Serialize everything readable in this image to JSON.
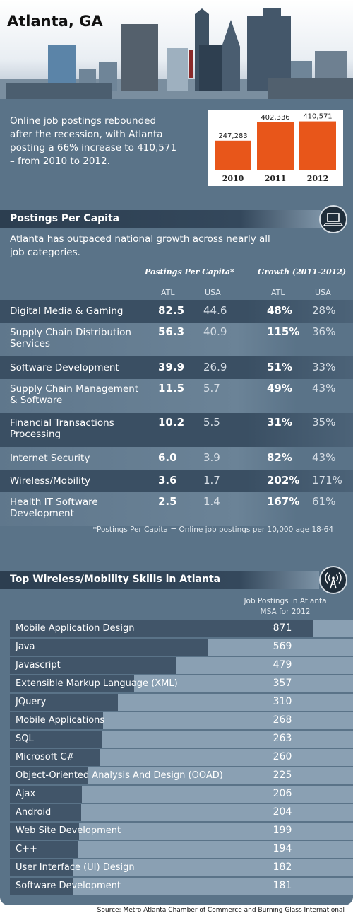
{
  "header": {
    "city_title": "Atlanta, GA",
    "intro_text": "Online job postings rebounded after the recession, with Atlanta posting a 66% increase to 410,571 – from 2010 to 2012."
  },
  "chart_data": {
    "type": "bar",
    "categories": [
      "2010",
      "2011",
      "2012"
    ],
    "values": [
      247283,
      402336,
      410571
    ],
    "value_labels": [
      "247,283",
      "402,336",
      "410,571"
    ],
    "bar_color": "#e8561a"
  },
  "per_capita": {
    "title": "Postings Per Capita",
    "icon": "laptop-icon",
    "intro": "Atlanta has outpaced national growth across nearly all job categories.",
    "group_headers": [
      "Postings Per Capita*",
      "Growth (2011-2012)"
    ],
    "col_headers": [
      "ATL",
      "USA",
      "ATL",
      "USA"
    ],
    "rows": [
      {
        "category": "Digital Media & Gaming",
        "ppc_atl": "82.5",
        "ppc_usa": "44.6",
        "growth_atl": "48%",
        "growth_usa": "28%"
      },
      {
        "category": "Supply Chain Distribution Services",
        "ppc_atl": "56.3",
        "ppc_usa": "40.9",
        "growth_atl": "115%",
        "growth_usa": "36%"
      },
      {
        "category": "Software Development",
        "ppc_atl": "39.9",
        "ppc_usa": "26.9",
        "growth_atl": "51%",
        "growth_usa": "33%"
      },
      {
        "category": "Supply Chain Management & Software",
        "ppc_atl": "11.5",
        "ppc_usa": "5.7",
        "growth_atl": "49%",
        "growth_usa": "43%"
      },
      {
        "category": "Financial Transactions Processing",
        "ppc_atl": "10.2",
        "ppc_usa": "5.5",
        "growth_atl": "31%",
        "growth_usa": "35%"
      },
      {
        "category": "Internet Security",
        "ppc_atl": "6.0",
        "ppc_usa": "3.9",
        "growth_atl": "82%",
        "growth_usa": "43%"
      },
      {
        "category": "Wireless/Mobility",
        "ppc_atl": "3.6",
        "ppc_usa": "1.7",
        "growth_atl": "202%",
        "growth_usa": "171%"
      },
      {
        "category": "Health IT Software Development",
        "ppc_atl": "2.5",
        "ppc_usa": "1.4",
        "growth_atl": "167%",
        "growth_usa": "61%"
      }
    ],
    "footnote": "*Postings Per Capita = Online job postings per 10,000 age 18-64"
  },
  "skills": {
    "title": "Top Wireless/Mobility Skills in Atlanta",
    "icon": "wireless-signal-icon",
    "column_header": "Job Postings in Atlanta MSA for 2012",
    "items": [
      {
        "label": "Mobile Application Design",
        "value": 871
      },
      {
        "label": "Java",
        "value": 569
      },
      {
        "label": "Javascript",
        "value": 479
      },
      {
        "label": "Extensible Markup Language (XML)",
        "value": 357
      },
      {
        "label": "JQuery",
        "value": 310
      },
      {
        "label": "Mobile Applications",
        "value": 268
      },
      {
        "label": "SQL",
        "value": 263
      },
      {
        "label": "Microsoft C#",
        "value": 260
      },
      {
        "label": "Object-Oriented Analysis And Design (OOAD)",
        "value": 225
      },
      {
        "label": "Ajax",
        "value": 206
      },
      {
        "label": "Android",
        "value": 204
      },
      {
        "label": "Web Site Development",
        "value": 199
      },
      {
        "label": "C++",
        "value": 194
      },
      {
        "label": "User Interface (UI) Design",
        "value": 182
      },
      {
        "label": "Software Development",
        "value": 181
      }
    ]
  },
  "source": "Source: Metro Atlanta Chamber of Commerce and Burning Glass International"
}
